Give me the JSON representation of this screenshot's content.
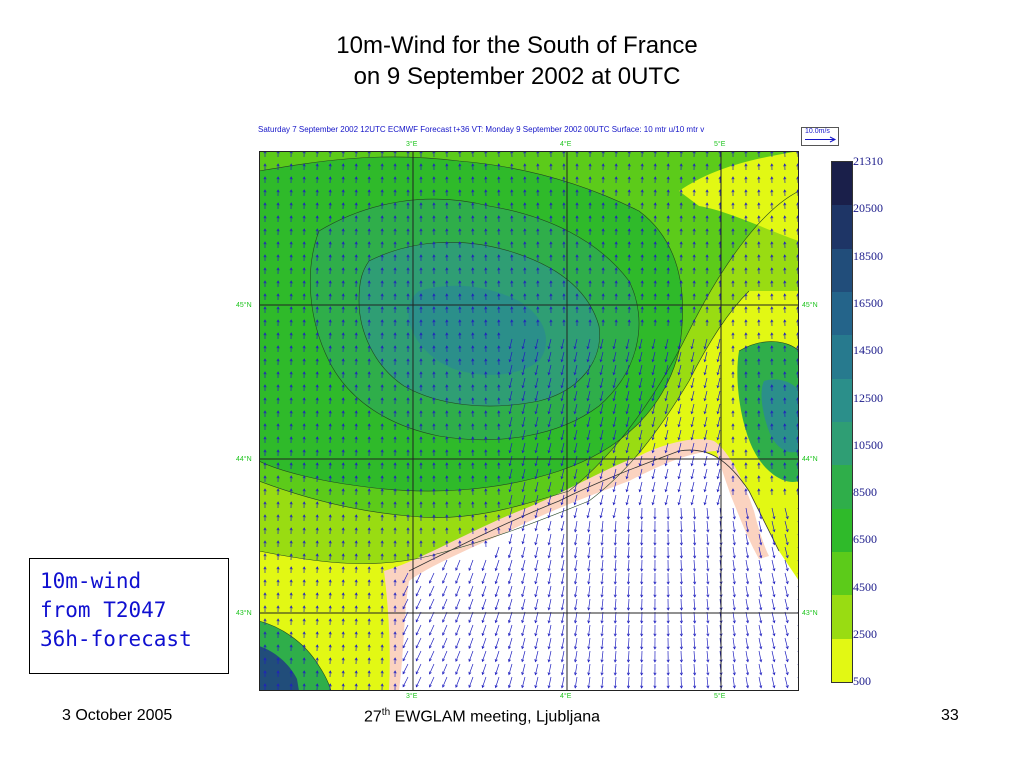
{
  "slide": {
    "title_line1": "10m-Wind for the South of France",
    "title_line2": "on 9 September 2002 at 0UTC",
    "footer_left": "3 October 2005",
    "footer_center_num": "27",
    "footer_center_sup": "th",
    "footer_center_rest": " EWGLAM meeting, Ljubljana",
    "footer_right": "33"
  },
  "map": {
    "header": "Saturday 7 September 2002 12UTC ECMWF  Forecast t+36 VT: Monday 9 September 2002 00UTC Surface: 10 mtr u/10 mtr v",
    "reference_vector": "10.0m/s",
    "lon_labels": [
      "3°E",
      "4°E",
      "5°E"
    ],
    "lat_labels": [
      "45°N",
      "44°N",
      "43°N"
    ]
  },
  "legend": {
    "values": [
      "21310",
      "20500",
      "18500",
      "16500",
      "14500",
      "12500",
      "10500",
      "8500",
      "6500",
      "4500",
      "2500",
      "500"
    ],
    "colors": [
      "#1a1f4a",
      "#1e3566",
      "#214d7a",
      "#24648a",
      "#277a8e",
      "#2b8f8a",
      "#2f9e74",
      "#2fae4a",
      "#2fba2a",
      "#5ccb1a",
      "#99dc12",
      "#e2f814"
    ]
  },
  "callout": {
    "line1": "10m-wind",
    "line2": "from T2047",
    "line3": "36h-forecast"
  },
  "colors": {
    "title_text": "#000000",
    "callout_text": "#1010d0",
    "grid_label": "#1cc41c"
  }
}
